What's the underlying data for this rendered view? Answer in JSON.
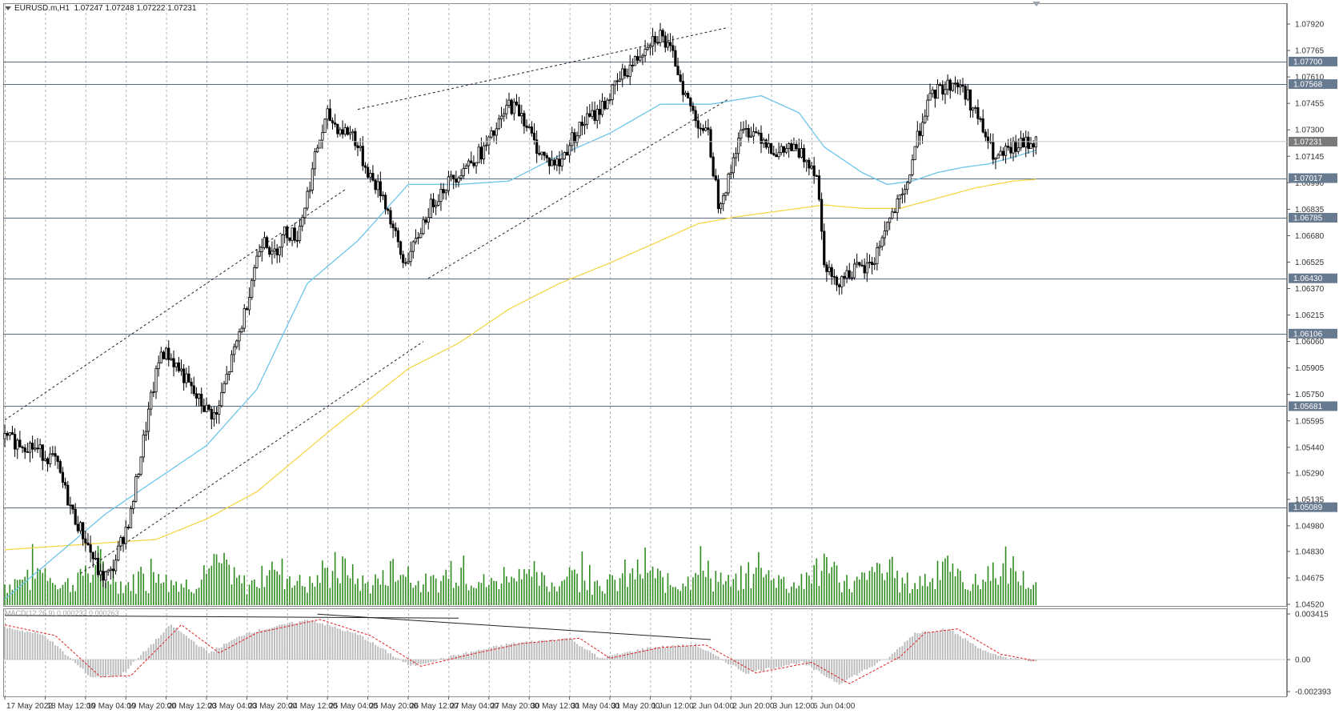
{
  "symbol_info": {
    "symbol": "EURUSD.m,H1",
    "ohlc": "1.07247 1.07248 1.07222 1.07231"
  },
  "macd_info": "MACD(12,26,9) 0.000232 0.000263",
  "colors": {
    "background": "#ffffff",
    "grid": "#b4b4b4",
    "candle": "#000000",
    "volume": "#2e8b1e",
    "ma_fast": "#6ec5ea",
    "ma_slow": "#f5d64a",
    "hline": "#5a6b80",
    "label_bg": "#687a8f",
    "macd_hist": "#bdbdbd",
    "macd_signal": "#e02020"
  },
  "chart_data": {
    "type": "candlestick",
    "timeframe": "H1",
    "price_scale": {
      "ticks": [
        "1.07920",
        "1.07765",
        "1.07610",
        "1.07455",
        "1.07300",
        "1.07145",
        "1.06990",
        "1.06835",
        "1.06680",
        "1.06525",
        "1.06370",
        "1.06215",
        "1.06060",
        "1.05905",
        "1.05750",
        "1.05595",
        "1.05440",
        "1.05290",
        "1.05135",
        "1.04980",
        "1.04830",
        "1.04675",
        "1.04520"
      ]
    },
    "time_labels": [
      "17 May 2022",
      "18 May 12:00",
      "19 May 04:00",
      "19 May 20:00",
      "20 May 12:00",
      "23 May 04:00",
      "23 May 20:00",
      "24 May 12:00",
      "25 May 04:00",
      "25 May 20:00",
      "26 May 12:00",
      "27 May 04:00",
      "27 May 20:00",
      "30 May 12:00",
      "31 May 04:00",
      "31 May 20:00",
      "1 Jun 12:00",
      "2 Jun 04:00",
      "2 Jun 20:00",
      "3 Jun 12:00",
      "6 Jun 04:00"
    ],
    "horizontal_levels": [
      1.077,
      1.07568,
      1.07017,
      1.06785,
      1.0643,
      1.06106,
      1.05681,
      1.05089
    ],
    "current_price": 1.07231,
    "price_path": [
      [
        0,
        1.0549
      ],
      [
        10,
        1.0545
      ],
      [
        20,
        1.0536
      ],
      [
        27,
        1.0505
      ],
      [
        32,
        1.049
      ],
      [
        38,
        1.0468
      ],
      [
        42,
        1.047
      ],
      [
        47,
        1.0492
      ],
      [
        50,
        1.0505
      ],
      [
        54,
        1.054
      ],
      [
        58,
        1.0572
      ],
      [
        62,
        1.06
      ],
      [
        65,
        1.0598
      ],
      [
        70,
        1.0588
      ],
      [
        75,
        1.0575
      ],
      [
        80,
        1.0566
      ],
      [
        84,
        1.0562
      ],
      [
        87,
        1.058
      ],
      [
        91,
        1.06
      ],
      [
        95,
        1.0622
      ],
      [
        99,
        1.065
      ],
      [
        103,
        1.067
      ],
      [
        106,
        1.0655
      ],
      [
        111,
        1.067
      ],
      [
        116,
        1.0668
      ],
      [
        120,
        1.0692
      ],
      [
        124,
        1.072
      ],
      [
        128,
        1.0738
      ],
      [
        133,
        1.073
      ],
      [
        138,
        1.0728
      ],
      [
        142,
        1.0712
      ],
      [
        146,
        1.07
      ],
      [
        150,
        1.0692
      ],
      [
        154,
        1.0672
      ],
      [
        158,
        1.0652
      ],
      [
        162,
        1.066
      ],
      [
        166,
        1.0676
      ],
      [
        170,
        1.0688
      ],
      [
        175,
        1.0698
      ],
      [
        180,
        1.0705
      ],
      [
        185,
        1.0712
      ],
      [
        190,
        1.0718
      ],
      [
        195,
        1.073
      ],
      [
        200,
        1.0745
      ],
      [
        205,
        1.074
      ],
      [
        210,
        1.0722
      ],
      [
        215,
        1.0712
      ],
      [
        220,
        1.071
      ],
      [
        225,
        1.0725
      ],
      [
        230,
        1.0735
      ],
      [
        235,
        1.074
      ],
      [
        240,
        1.075
      ],
      [
        245,
        1.0762
      ],
      [
        250,
        1.077
      ],
      [
        255,
        1.0782
      ],
      [
        260,
        1.0786
      ],
      [
        266,
        1.077
      ],
      [
        270,
        1.075
      ],
      [
        274,
        1.0737
      ],
      [
        279,
        1.0726
      ],
      [
        283,
        1.0688
      ],
      [
        287,
        1.07
      ],
      [
        291,
        1.0726
      ],
      [
        295,
        1.073
      ],
      [
        299,
        1.0728
      ],
      [
        303,
        1.0722
      ],
      [
        307,
        1.0715
      ],
      [
        311,
        1.072
      ],
      [
        315,
        1.0716
      ],
      [
        319,
        1.0712
      ],
      [
        322,
        1.0705
      ],
      [
        325,
        1.0655
      ],
      [
        329,
        1.064
      ],
      [
        333,
        1.0645
      ],
      [
        337,
        1.0648
      ],
      [
        341,
        1.0648
      ],
      [
        345,
        1.0654
      ],
      [
        349,
        1.0672
      ],
      [
        353,
        1.0683
      ],
      [
        357,
        1.0692
      ],
      [
        361,
        1.072
      ],
      [
        365,
        1.0742
      ],
      [
        369,
        1.0752
      ],
      [
        373,
        1.0755
      ],
      [
        377,
        1.0758
      ],
      [
        381,
        1.0752
      ],
      [
        385,
        1.074
      ],
      [
        389,
        1.0726
      ],
      [
        393,
        1.0712
      ],
      [
        397,
        1.0716
      ],
      [
        401,
        1.072
      ],
      [
        405,
        1.0722
      ],
      [
        409,
        1.0723
      ]
    ],
    "ma_fast": [
      [
        0,
        1.0455
      ],
      [
        40,
        1.0505
      ],
      [
        80,
        1.0545
      ],
      [
        100,
        1.0578
      ],
      [
        120,
        1.064
      ],
      [
        140,
        1.0665
      ],
      [
        160,
        1.0698
      ],
      [
        180,
        1.0698
      ],
      [
        200,
        1.07
      ],
      [
        220,
        1.0715
      ],
      [
        240,
        1.0728
      ],
      [
        260,
        1.0745
      ],
      [
        280,
        1.0745
      ],
      [
        300,
        1.075
      ],
      [
        315,
        1.074
      ],
      [
        325,
        1.072
      ],
      [
        340,
        1.0705
      ],
      [
        350,
        1.0698
      ],
      [
        360,
        1.07
      ],
      [
        370,
        1.0705
      ],
      [
        380,
        1.0708
      ],
      [
        390,
        1.071
      ],
      [
        400,
        1.0714
      ],
      [
        409,
        1.0718
      ]
    ],
    "ma_slow": [
      [
        0,
        1.0484
      ],
      [
        40,
        1.0488
      ],
      [
        60,
        1.049
      ],
      [
        80,
        1.0502
      ],
      [
        100,
        1.0518
      ],
      [
        130,
        1.0555
      ],
      [
        160,
        1.059
      ],
      [
        180,
        1.0605
      ],
      [
        200,
        1.0625
      ],
      [
        220,
        1.064
      ],
      [
        240,
        1.0652
      ],
      [
        260,
        1.0665
      ],
      [
        275,
        1.0675
      ],
      [
        290,
        1.0679
      ],
      [
        310,
        1.0683
      ],
      [
        325,
        1.0686
      ],
      [
        340,
        1.0684
      ],
      [
        355,
        1.0684
      ],
      [
        370,
        1.069
      ],
      [
        385,
        1.0696
      ],
      [
        400,
        1.07
      ],
      [
        409,
        1.0701
      ]
    ],
    "trendlines": [
      {
        "style": "dashed",
        "from": [
          0,
          1.056
        ],
        "to": [
          135,
          1.0695
        ]
      },
      {
        "style": "dashed",
        "from": [
          30,
          1.047
        ],
        "to": [
          166,
          1.0606
        ]
      },
      {
        "style": "dashed",
        "from": [
          140,
          1.0742
        ],
        "to": [
          287,
          1.079
        ]
      },
      {
        "style": "dashed",
        "from": [
          168,
          1.0643
        ],
        "to": [
          287,
          1.0748
        ]
      }
    ],
    "macd": {
      "ticks": [
        "0.003415",
        "0.00",
        "-0.002393"
      ],
      "signal_path": [
        [
          0,
          0.0026
        ],
        [
          20,
          0.0018
        ],
        [
          38,
          -0.0013
        ],
        [
          50,
          -0.0012
        ],
        [
          70,
          0.0026
        ],
        [
          85,
          0.0005
        ],
        [
          100,
          0.002
        ],
        [
          125,
          0.003
        ],
        [
          145,
          0.0018
        ],
        [
          165,
          -0.0005
        ],
        [
          185,
          0.0004
        ],
        [
          205,
          0.0012
        ],
        [
          228,
          0.0016
        ],
        [
          240,
          0.0001
        ],
        [
          260,
          0.0009
        ],
        [
          278,
          0.0011
        ],
        [
          298,
          -0.001
        ],
        [
          320,
          -0.0002
        ],
        [
          335,
          -0.0018
        ],
        [
          355,
          0.0002
        ],
        [
          365,
          0.002
        ],
        [
          378,
          0.0023
        ],
        [
          395,
          0.0004
        ],
        [
          409,
          -0.0001
        ]
      ],
      "trendlines": [
        {
          "from": [
            0,
            0.0033
          ],
          "to": [
            180,
            0.0031
          ]
        },
        {
          "from": [
            124,
            0.0034
          ],
          "to": [
            280,
            0.0015
          ]
        }
      ]
    }
  }
}
